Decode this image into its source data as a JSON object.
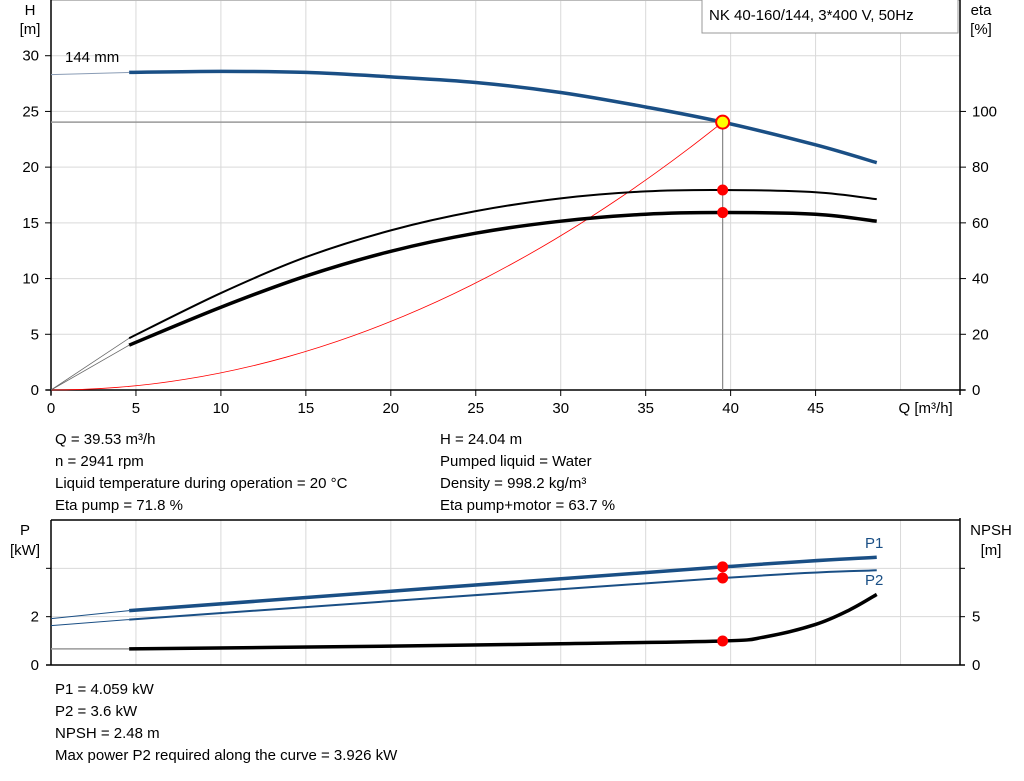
{
  "chart_data": [
    {
      "type": "line",
      "title": "NK 40-160/144, 3*400 V, 50Hz",
      "xlabel": "Q [m³/h]",
      "ylabel_left": [
        "H",
        "[m]"
      ],
      "ylabel_right": [
        "eta",
        "[%]"
      ],
      "xlim": [
        0,
        53.5
      ],
      "ylim_left": [
        0,
        35
      ],
      "ylim_right": [
        0,
        140
      ],
      "grid": true,
      "x_ticks": [
        "0",
        "5",
        "10",
        "15",
        "20",
        "25",
        "30",
        "35",
        "40",
        "45"
      ],
      "y_ticks_left": [
        "0",
        "5",
        "10",
        "15",
        "20",
        "25",
        "30"
      ],
      "y_ticks_right": [
        "0",
        "20",
        "40",
        "60",
        "80",
        "100"
      ],
      "curve_label": "144 mm",
      "series": [
        {
          "id": "head",
          "axis": "left",
          "color": "#1a4f85",
          "x": [
            4.6,
            10,
            15,
            20,
            25,
            30,
            35,
            39.53,
            45,
            48.6
          ],
          "y": [
            28.5,
            28.6,
            28.5,
            28.1,
            27.6,
            26.7,
            25.4,
            24.04,
            22.0,
            20.4
          ],
          "extrapolated_from": [
            0,
            28.3
          ]
        },
        {
          "id": "eta_pump",
          "axis": "right",
          "color": "#000000",
          "x": [
            4.6,
            10,
            15,
            20,
            25,
            30,
            35,
            39.53,
            45,
            48.6
          ],
          "y": [
            18.6,
            34.8,
            47.7,
            57.3,
            64.2,
            68.8,
            71.3,
            71.8,
            71.0,
            68.5
          ]
        },
        {
          "id": "eta_pump_motor",
          "axis": "right",
          "color": "#000000",
          "x": [
            4.6,
            10,
            15,
            20,
            25,
            30,
            35,
            39.53,
            45,
            48.6
          ],
          "y": [
            16.1,
            29.7,
            40.9,
            49.8,
            56.3,
            60.6,
            63.1,
            63.7,
            63.1,
            60.6
          ]
        },
        {
          "id": "system_curve",
          "axis": "left",
          "color": "#ff0000",
          "formula": "H = 0.01538*Q^2",
          "x_range": [
            0,
            39.53
          ]
        }
      ],
      "duty_point": {
        "Q": 39.53,
        "H": 24.04,
        "eta_pump": 71.8,
        "eta_pump_motor": 63.7
      }
    },
    {
      "type": "line",
      "ylabel_left": [
        "P",
        "[kW]"
      ],
      "ylabel_right": [
        "NPSH",
        "[m]"
      ],
      "xlim": [
        0,
        53.5
      ],
      "ylim_left": [
        0,
        6
      ],
      "ylim_right": [
        0,
        15
      ],
      "grid": true,
      "y_ticks_left": [
        "0",
        "2"
      ],
      "y_ticks_right": [
        "0",
        "5"
      ],
      "series": [
        {
          "name": "P1",
          "axis": "left",
          "color": "#1a4f85",
          "x": [
            0,
            4.6,
            39.53,
            48.6
          ],
          "y": [
            1.92,
            2.25,
            4.059,
            4.46
          ]
        },
        {
          "name": "P2",
          "axis": "left",
          "color": "#1a4f85",
          "x": [
            0,
            4.6,
            39.53,
            48.6
          ],
          "y": [
            1.63,
            1.88,
            3.6,
            3.92
          ]
        },
        {
          "id": "npsh",
          "axis": "right",
          "color": "#000000",
          "x": [
            0,
            4.6,
            20,
            30,
            39.53,
            42,
            45,
            47,
            48.6
          ],
          "y": [
            1.67,
            1.67,
            1.95,
            2.2,
            2.48,
            2.9,
            4.2,
            5.7,
            7.3
          ]
        }
      ]
    }
  ],
  "info_top": {
    "left": [
      "Q = 39.53 m³/h",
      "n = 2941 rpm",
      "Liquid temperature during operation = 20 °C",
      "Eta pump = 71.8 %"
    ],
    "right": [
      "H = 24.04 m",
      "Pumped liquid = Water",
      "Density = 998.2 kg/m³",
      "Eta pump+motor = 63.7 %"
    ]
  },
  "info_bottom": [
    "P1 = 4.059 kW",
    "P2 = 3.6 kW",
    "NPSH = 2.48 m",
    "Max power P2 required along the curve = 3.926 kW"
  ],
  "colors": {
    "head": "#1a4f85",
    "grid": "#d9d9d9",
    "duty_point": "#ffff00",
    "marker": "#ff0000"
  }
}
